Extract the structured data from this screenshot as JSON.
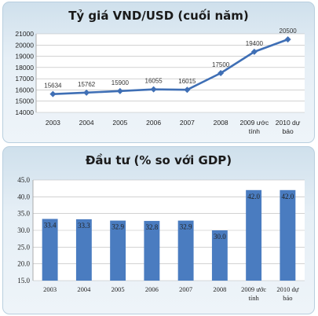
{
  "chart_data": [
    {
      "type": "line",
      "title": "Tỷ giá VND/USD (cuối năm)",
      "categories": [
        [
          "2003"
        ],
        [
          "2004"
        ],
        [
          "2005"
        ],
        [
          "2006"
        ],
        [
          "2007"
        ],
        [
          "2008"
        ],
        [
          "2009 ước",
          "tính"
        ],
        [
          "2010 dự",
          "báo"
        ]
      ],
      "values": [
        15634,
        15762,
        15900,
        16055,
        16015,
        17500,
        19400,
        20500
      ],
      "data_labels": [
        "15634",
        "15762",
        "15900",
        "16055",
        "16015",
        "17500",
        "19400",
        "20500"
      ],
      "ylim": [
        14000,
        21000
      ],
      "yticks": [
        "14000",
        "15000",
        "16000",
        "17000",
        "18000",
        "19000",
        "20000",
        "21000"
      ],
      "grid": true,
      "color": "#3f6fb5"
    },
    {
      "type": "bar",
      "title": "Đầu tư (% so với GDP)",
      "categories": [
        [
          "2003"
        ],
        [
          "2004"
        ],
        [
          "2005"
        ],
        [
          "2006"
        ],
        [
          "2007"
        ],
        [
          "2008"
        ],
        [
          "2009 ước",
          "tính"
        ],
        [
          "2010 dự",
          "báo"
        ]
      ],
      "values": [
        33.4,
        33.3,
        32.9,
        32.8,
        32.9,
        30.0,
        42.0,
        42.0
      ],
      "data_labels": [
        "33.4",
        "33.3",
        "32.9",
        "32.8",
        "32.9",
        "30.0",
        "42.0",
        "42.0"
      ],
      "ylim": [
        15.0,
        45.0
      ],
      "yticks": [
        "15.0",
        "20.0",
        "25.0",
        "30.0",
        "35.0",
        "40.0",
        "45.0"
      ],
      "grid": true,
      "color": "#4a7cc0"
    }
  ]
}
